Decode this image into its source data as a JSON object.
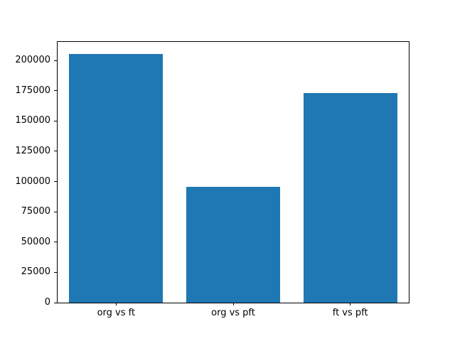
{
  "figure": {
    "background": "#ffffff",
    "spine_color": "#000000",
    "tick_label_color": "#000000"
  },
  "chart_data": {
    "type": "bar",
    "title": "",
    "xlabel": "",
    "ylabel": "",
    "categories": [
      "org vs ft",
      "org vs pft",
      "ft vs pft"
    ],
    "values": [
      205000,
      95600,
      173200
    ],
    "bar_color": "#1f77b4",
    "bar_width_fraction": 0.8,
    "ylim": [
      0,
      215250
    ],
    "yticks": [
      0,
      25000,
      50000,
      75000,
      100000,
      125000,
      150000,
      175000,
      200000
    ],
    "grid": false,
    "legend": null
  }
}
